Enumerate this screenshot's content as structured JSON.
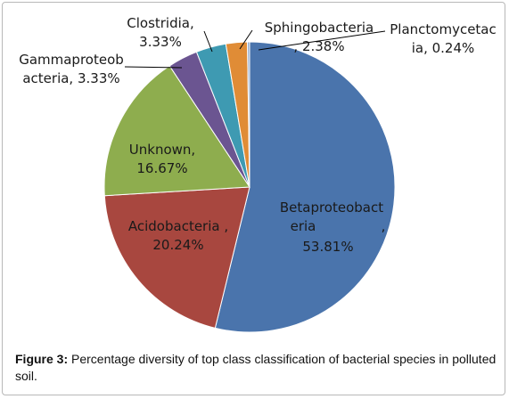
{
  "chart_data": {
    "type": "pie",
    "slices": [
      {
        "label": "Betaproteobacteria, 53.81%",
        "lines": [
          "Betaproteobact",
          "eria",
          ",",
          "53.81%"
        ],
        "value": 53.81,
        "color": "#4a74ac"
      },
      {
        "label": "Acidobacteria, 20.24%",
        "lines": [
          "Acidobacteria ,",
          "20.24%"
        ],
        "value": 20.24,
        "color": "#a8473f"
      },
      {
        "label": "Unknown, 16.67%",
        "lines": [
          "Unknown,",
          "16.67%"
        ],
        "value": 16.67,
        "color": "#8ead4e"
      },
      {
        "label": "Gammaproteobacteria, 3.33%",
        "lines": [
          "Gammaproteob",
          "acteria, 3.33%"
        ],
        "value": 3.33,
        "color": "#6b5591"
      },
      {
        "label": "Clostridia, 3.33%",
        "lines": [
          "Clostridia,",
          "3.33%"
        ],
        "value": 3.33,
        "color": "#3e9ab2"
      },
      {
        "label": "Sphingobacteria, 2.38%",
        "lines": [
          "Sphingobacteria",
          ", 2.38%"
        ],
        "value": 2.38,
        "color": "#e08c36"
      },
      {
        "label": "Planctomycetacia, 0.24%",
        "lines": [
          "Planctomycetac",
          "ia, 0.24%"
        ],
        "value": 0.24,
        "color": "#8aa5cd"
      }
    ],
    "start_angle_deg": 0,
    "direction": "clockwise",
    "legend": "none"
  },
  "caption": {
    "label": "Figure 3:",
    "text": " Percentage diversity of top class classification of bacterial species in polluted soil."
  }
}
